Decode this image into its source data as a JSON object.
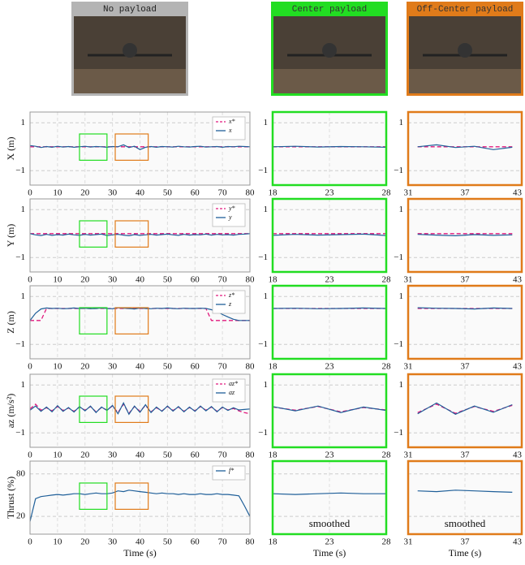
{
  "photos": [
    {
      "label": "No payload",
      "color": "#b4b4b4"
    },
    {
      "label": "Center payload",
      "color": "#22dd22"
    },
    {
      "label": "Off-Center payload",
      "color": "#e07b1a"
    }
  ],
  "chart_data": {
    "type": "line",
    "x": [
      0,
      2,
      4,
      6,
      8,
      10,
      12,
      14,
      16,
      18,
      20,
      22,
      24,
      26,
      28,
      30,
      32,
      34,
      36,
      38,
      40,
      42,
      44,
      46,
      48,
      50,
      52,
      54,
      56,
      58,
      60,
      62,
      64,
      66,
      68,
      70,
      72,
      74,
      76,
      78,
      80
    ],
    "xlim": [
      0,
      80
    ],
    "xticks": [
      0,
      10,
      20,
      30,
      40,
      50,
      60,
      70,
      80
    ],
    "xlabel": "Time (s)",
    "zooms": [
      {
        "xlim": [
          18,
          28
        ],
        "xticks": [
          18,
          23,
          28
        ],
        "color": "#22dd22",
        "xlabel": "Time (s)"
      },
      {
        "xlim": [
          31,
          43
        ],
        "xticks": [
          31,
          37,
          43
        ],
        "color": "#e07b1a",
        "xlabel": "Time (s)"
      }
    ],
    "zoom_note": "smoothed",
    "rows": [
      {
        "ylabel": "X (m)",
        "ylim": [
          -1.6,
          1.45
        ],
        "yticks": [
          {
            "value": -1,
            "label": "−1"
          },
          1
        ],
        "series": [
          {
            "name": "x*",
            "color": "#e0197d",
            "dash": true,
            "values": [
              0,
              0,
              0,
              0,
              0,
              0,
              0,
              0,
              0,
              0,
              0,
              0,
              0,
              0,
              0,
              0,
              0,
              0,
              0,
              0,
              0,
              0,
              0,
              0,
              0,
              0,
              0,
              0,
              0,
              0,
              0,
              0,
              0,
              0,
              0,
              0,
              0,
              0,
              0,
              0,
              0
            ]
          },
          {
            "name": "x",
            "color": "#1f5f99",
            "dash": false,
            "values": [
              0.05,
              0.02,
              -0.03,
              0.01,
              -0.02,
              0.02,
              -0.01,
              0.01,
              -0.02,
              0.0,
              0.02,
              -0.01,
              0.01,
              0.0,
              -0.02,
              0.01,
              0.0,
              0.08,
              -0.03,
              0.02,
              -0.12,
              -0.02,
              0.01,
              -0.02,
              0.01,
              0.0,
              -0.01,
              0.02,
              0.0,
              -0.01,
              0.01,
              0.02,
              -0.01,
              0.0,
              0.01,
              -0.02,
              0.01,
              0.0,
              0.02,
              0.01,
              0.0
            ]
          }
        ]
      },
      {
        "ylabel": "Y (m)",
        "ylim": [
          -1.6,
          1.45
        ],
        "yticks": [
          {
            "value": -1,
            "label": "−1"
          },
          1
        ],
        "series": [
          {
            "name": "y*",
            "color": "#e0197d",
            "dash": true,
            "values": [
              0,
              0,
              0,
              0,
              0,
              0,
              0,
              0,
              0,
              0,
              0,
              0,
              0,
              0,
              0,
              0,
              0,
              0,
              0,
              0,
              0,
              0,
              0,
              0,
              0,
              0,
              0,
              0,
              0,
              0,
              0,
              0,
              0,
              0,
              0,
              0,
              0,
              0,
              0,
              0,
              0
            ]
          },
          {
            "name": "y",
            "color": "#1f5f99",
            "dash": false,
            "values": [
              0.0,
              -0.05,
              -0.08,
              -0.03,
              -0.07,
              -0.04,
              -0.06,
              -0.02,
              -0.05,
              -0.07,
              -0.03,
              -0.06,
              -0.04,
              -0.02,
              -0.08,
              -0.05,
              -0.03,
              -0.06,
              -0.09,
              -0.04,
              -0.07,
              -0.05,
              -0.03,
              -0.06,
              -0.04,
              -0.02,
              -0.05,
              -0.07,
              -0.03,
              -0.06,
              -0.04,
              -0.05,
              -0.02,
              -0.06,
              -0.03,
              -0.05,
              -0.04,
              -0.06,
              -0.03,
              -0.02,
              0.0
            ]
          }
        ]
      },
      {
        "ylabel": "Z (m)",
        "ylim": [
          -1.6,
          1.45
        ],
        "yticks": [
          {
            "value": -1,
            "label": "−1"
          },
          1
        ],
        "series": [
          {
            "name": "z*",
            "color": "#e0197d",
            "dash": true,
            "values": [
              0,
              0,
              0,
              0.5,
              0.5,
              0.5,
              0.5,
              0.5,
              0.5,
              0.5,
              0.5,
              0.5,
              0.5,
              0.5,
              0.5,
              0.5,
              0.5,
              0.5,
              0.5,
              0.5,
              0.5,
              0.5,
              0.5,
              0.5,
              0.5,
              0.5,
              0.5,
              0.5,
              0.5,
              0.5,
              0.5,
              0.5,
              0.5,
              0,
              0,
              0,
              0,
              0,
              0,
              0,
              0
            ]
          },
          {
            "name": "z",
            "color": "#1f5f99",
            "dash": false,
            "values": [
              0.0,
              0.3,
              0.48,
              0.52,
              0.5,
              0.51,
              0.49,
              0.5,
              0.52,
              0.5,
              0.51,
              0.49,
              0.5,
              0.52,
              0.5,
              0.49,
              0.53,
              0.51,
              0.5,
              0.48,
              0.52,
              0.5,
              0.49,
              0.51,
              0.5,
              0.52,
              0.5,
              0.49,
              0.51,
              0.5,
              0.5,
              0.51,
              0.5,
              0.45,
              0.38,
              0.25,
              0.15,
              0.05,
              0.0,
              0.0,
              0.0
            ]
          }
        ]
      },
      {
        "ylabel": "az (m/s²)",
        "ylim": [
          -1.6,
          1.45
        ],
        "yticks": [
          {
            "value": -1,
            "label": "−1"
          },
          1
        ],
        "series": [
          {
            "name": "az*",
            "color": "#e0197d",
            "dash": true,
            "values": [
              0.0,
              0.2,
              -0.05,
              0.05,
              -0.08,
              0.1,
              -0.06,
              0.04,
              -0.1,
              0.08,
              -0.05,
              0.1,
              -0.12,
              0.06,
              -0.04,
              0.12,
              -0.15,
              0.2,
              -0.18,
              0.1,
              -0.1,
              0.15,
              -0.12,
              0.05,
              -0.08,
              0.1,
              -0.06,
              0.08,
              -0.1,
              0.06,
              -0.08,
              0.1,
              -0.05,
              0.08,
              -0.1,
              0.06,
              -0.04,
              0.02,
              -0.08,
              -0.15,
              -0.2
            ]
          },
          {
            "name": "az",
            "color": "#1f5f99",
            "dash": false,
            "values": [
              -0.05,
              0.12,
              -0.1,
              0.08,
              -0.12,
              0.14,
              -0.1,
              0.06,
              -0.13,
              0.1,
              -0.08,
              0.12,
              -0.15,
              0.08,
              -0.06,
              0.15,
              -0.2,
              0.25,
              -0.22,
              0.12,
              -0.14,
              0.18,
              -0.15,
              0.08,
              -0.1,
              0.12,
              -0.09,
              0.1,
              -0.12,
              0.08,
              -0.1,
              0.12,
              -0.08,
              0.1,
              -0.12,
              0.08,
              -0.06,
              0.05,
              -0.04,
              -0.02,
              0.0
            ]
          }
        ]
      },
      {
        "ylabel": "Thrust (%)",
        "ylim": [
          -5,
          98
        ],
        "yticks": [
          20,
          80
        ],
        "series": [
          {
            "name": "f*",
            "color": "#1f5f99",
            "dash": false,
            "values": [
              13,
              45,
              48,
              49,
              50,
              51,
              50,
              51,
              52,
              52,
              51,
              52,
              53,
              52,
              52,
              53,
              56,
              55,
              57,
              56,
              55,
              54,
              53,
              52,
              53,
              52,
              52,
              51,
              52,
              51,
              51,
              52,
              51,
              51,
              52,
              51,
              51,
              50,
              49,
              35,
              20
            ]
          }
        ]
      }
    ]
  }
}
